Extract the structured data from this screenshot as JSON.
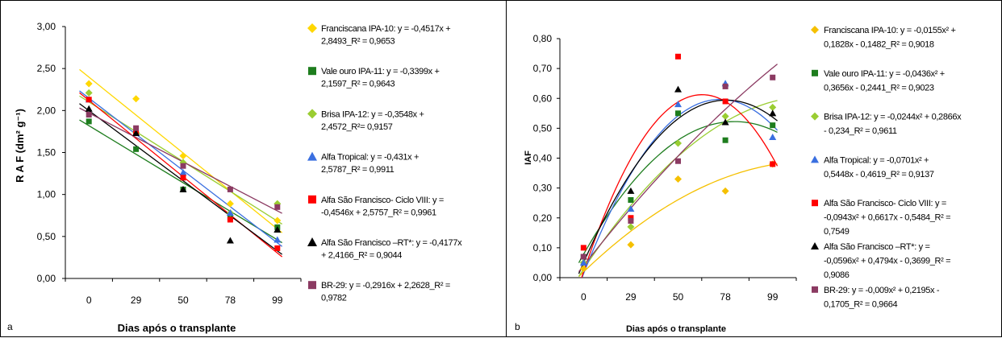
{
  "chart_data": [
    {
      "type": "scatter",
      "panel_label": "a",
      "xlabel": "Dias após o transplante",
      "ylabel": "R A F  (dm² g⁻¹)",
      "categories": [
        "0",
        "29",
        "50",
        "78",
        "99"
      ],
      "ylim": [
        0,
        3
      ],
      "yticks": [
        "0,00",
        "0,50",
        "1,00",
        "1,50",
        "2,00",
        "2,50",
        "3,00"
      ],
      "grid": "none",
      "legend_position": "right",
      "fit": "linear",
      "series": [
        {
          "legend": "Franciscana IPA-10: y = -0,4517x + 2,8493_R² = 0,9653",
          "color": "#ffd700",
          "marker": "diamond",
          "values": [
            2.32,
            2.14,
            1.46,
            0.89,
            0.69
          ],
          "fit_coef": [
            -0.4517,
            2.8493
          ]
        },
        {
          "legend": "Vale ouro IPA-11: y = -0,3399x + 2,1597_R² = 0,9643",
          "color": "#1e7d1e",
          "marker": "square",
          "values": [
            1.87,
            1.54,
            1.06,
            0.73,
            0.61
          ],
          "fit_coef": [
            -0.3399,
            2.1597
          ]
        },
        {
          "legend": "Brisa IPA-12: y = -0,3548x + 2,4572_R²= 0,9157",
          "color": "#9acd32",
          "marker": "diamond",
          "values": [
            2.21,
            1.74,
            1.38,
            0.78,
            0.89
          ],
          "fit_coef": [
            -0.3548,
            2.4572
          ]
        },
        {
          "legend": "Alfa Tropical: y = -0,431x + 2,5787_R² = 0,9911",
          "color": "#3a6fe0",
          "marker": "triangle",
          "values": [
            2.13,
            1.73,
            1.26,
            0.78,
            0.46
          ],
          "fit_coef": [
            -0.431,
            2.5787
          ]
        },
        {
          "legend": "Alfa São Francisco- Ciclo VIII: y = -0,4546x + 2,5757_R² = 0,9961",
          "color": "#ff0000",
          "marker": "square",
          "values": [
            2.13,
            1.73,
            1.2,
            0.7,
            0.36
          ],
          "fit_coef": [
            -0.4546,
            2.5757
          ]
        },
        {
          "legend": "Alfa São Francisco –RT*: y = -0,4177x + 2,4166_R² = 0,9044",
          "color": "#000000",
          "marker": "triangle",
          "values": [
            2.02,
            1.73,
            1.06,
            0.45,
            0.58
          ],
          "fit_coef": [
            -0.4177,
            2.4166
          ]
        },
        {
          "legend": "BR-29: y = -0,2916x + 2,2628_R² = 0,9782",
          "color": "#8b3a62",
          "marker": "square",
          "values": [
            1.95,
            1.79,
            1.34,
            1.06,
            0.85
          ],
          "fit_coef": [
            -0.2916,
            2.2628
          ]
        }
      ]
    },
    {
      "type": "scatter",
      "panel_label": "b",
      "xlabel": "Dias após o transplante",
      "ylabel": "IAF",
      "categories": [
        "0",
        "29",
        "50",
        "78",
        "99"
      ],
      "ylim": [
        0,
        0.8
      ],
      "yticks": [
        "0,00",
        "0,10",
        "0,20",
        "0,30",
        "0,40",
        "0,50",
        "0,60",
        "0,70",
        "0,80"
      ],
      "grid": "none",
      "legend_position": "right",
      "fit": "quadratic",
      "series": [
        {
          "legend": "Franciscana IPA-10: y = -0,0155x² + 0,1828x - 0,1482_R² = 0,9018",
          "color": "#f5c000",
          "marker": "diamond",
          "values": [
            0.03,
            0.11,
            0.33,
            0.29,
            0.38
          ],
          "fit_coef": [
            -0.0155,
            0.1828,
            -0.1482
          ]
        },
        {
          "legend": "Vale ouro IPA-11: y = -0,0436x² + 0,3656x - 0,2441_R² = 0,9023",
          "color": "#1e7d1e",
          "marker": "square",
          "values": [
            0.07,
            0.26,
            0.55,
            0.46,
            0.51
          ],
          "fit_coef": [
            -0.0436,
            0.3656,
            -0.2441
          ]
        },
        {
          "legend": "Brisa IPA-12: y = -0,0244x² + 0,2866x - 0,234_R² = 0,9611",
          "color": "#9acd32",
          "marker": "diamond",
          "values": [
            0.05,
            0.17,
            0.45,
            0.54,
            0.57
          ],
          "fit_coef": [
            -0.0244,
            0.2866,
            -0.234
          ]
        },
        {
          "legend": "Alfa Tropical: y = -0,0701x² + 0,5448x - 0,4619_R² = 0,9137",
          "color": "#3a6fe0",
          "marker": "triangle",
          "values": [
            0.05,
            0.23,
            0.58,
            0.65,
            0.47
          ],
          "fit_coef": [
            -0.0701,
            0.5448,
            -0.4619
          ]
        },
        {
          "legend": "Alfa São Francisco- Ciclo VIII: y = -0,0943x² + 0,6617x - 0,5484_R² = 0,7549",
          "color": "#ff0000",
          "marker": "square",
          "values": [
            0.1,
            0.2,
            0.74,
            0.59,
            0.38
          ],
          "fit_coef": [
            -0.0943,
            0.6617,
            -0.5484
          ]
        },
        {
          "legend": "Alfa São Francisco –RT*: y = -0,0596x² + 0,4794x - 0,3699_R² = 0,9086",
          "color": "#000000",
          "marker": "triangle",
          "values": [
            0.07,
            0.29,
            0.63,
            0.52,
            0.55
          ],
          "fit_coef": [
            -0.0596,
            0.4794,
            -0.3699
          ]
        },
        {
          "legend": "BR-29: y = -0,009x² + 0,2195x - 0,1705_R² = 0,9664",
          "color": "#8b3a62",
          "marker": "square",
          "values": [
            0.07,
            0.19,
            0.39,
            0.64,
            0.67
          ],
          "fit_coef": [
            -0.009,
            0.2195,
            -0.1705
          ]
        }
      ]
    }
  ]
}
